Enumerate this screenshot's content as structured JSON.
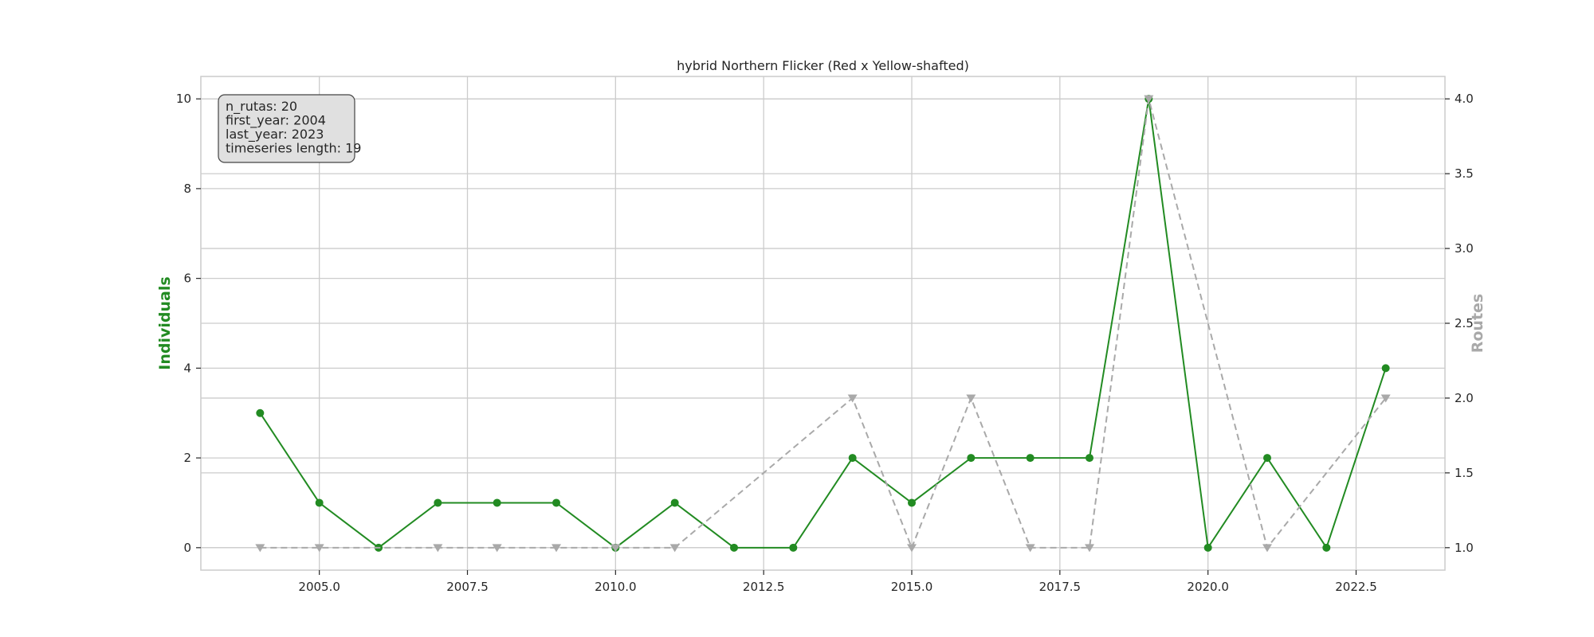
{
  "chart_data": {
    "type": "line",
    "title": "hybrid Northern Flicker (Red x Yellow-shafted)",
    "xlabel": "",
    "ylabel_left": "Individuals",
    "ylabel_right": "Routes",
    "xlim": [
      2003.0,
      2024.0
    ],
    "ylim_left": [
      -0.5,
      10.5
    ],
    "ylim_right": [
      0.85,
      4.15
    ],
    "x_ticks": [
      2005.0,
      2007.5,
      2010.0,
      2012.5,
      2015.0,
      2017.5,
      2020.0,
      2022.5
    ],
    "y_left_ticks": [
      0,
      2,
      4,
      6,
      8,
      10
    ],
    "y_right_ticks": [
      1.0,
      1.5,
      2.0,
      2.5,
      3.0,
      3.5,
      4.0
    ],
    "grid": true,
    "series": [
      {
        "axis": "left",
        "color": "#228b22",
        "marker": "circle",
        "linestyle": "solid",
        "x": [
          2004,
          2005,
          2006,
          2007,
          2008,
          2009,
          2010,
          2011,
          2012,
          2013,
          2014,
          2015,
          2016,
          2017,
          2018,
          2019,
          2020,
          2021,
          2022,
          2023
        ],
        "values": [
          3,
          1,
          0,
          1,
          1,
          1,
          0,
          1,
          0,
          0,
          2,
          1,
          2,
          2,
          2,
          10,
          0,
          2,
          0,
          4
        ]
      },
      {
        "axis": "right",
        "color": "#a9a9a9",
        "marker": "triangle-down",
        "linestyle": "dashed",
        "x": [
          2004,
          2005,
          2007,
          2008,
          2009,
          2010,
          2011,
          2014,
          2015,
          2016,
          2017,
          2018,
          2019,
          2021,
          2023
        ],
        "values": [
          1,
          1,
          1,
          1,
          1,
          1,
          1,
          2,
          1,
          2,
          1,
          1,
          4,
          1,
          2
        ]
      }
    ],
    "info_box": {
      "placement": "top-left",
      "lines": [
        "n_rutas: 20",
        "first_year: 2004",
        "last_year: 2023",
        "timeseries length: 19"
      ]
    }
  }
}
